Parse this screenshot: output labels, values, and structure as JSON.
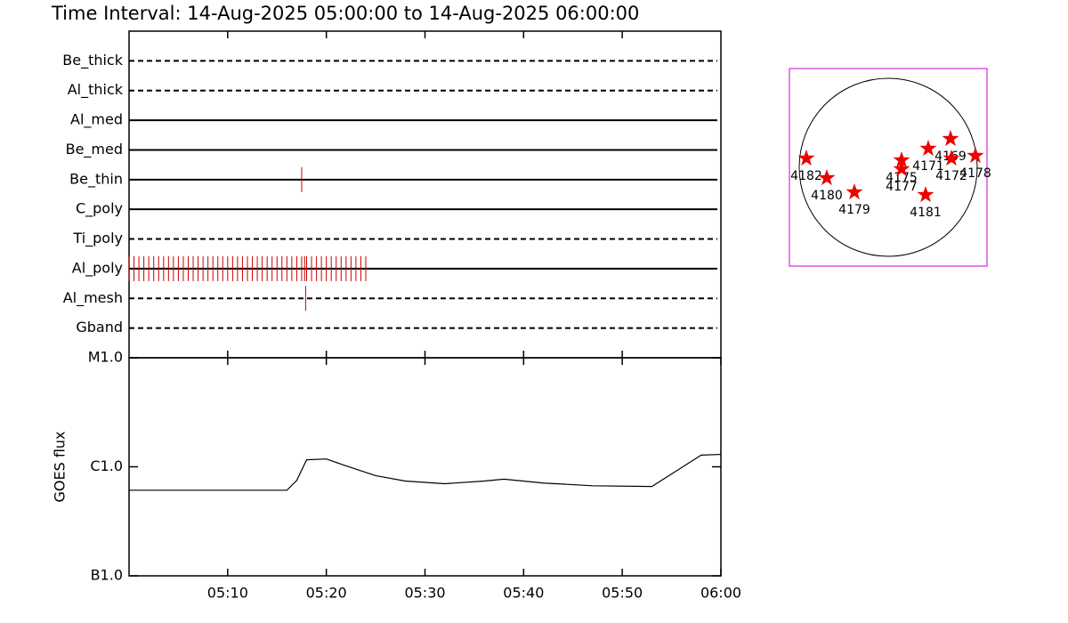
{
  "chart_data": [
    {
      "type": "timeline",
      "title": "Time Interval: 14-Aug-2025 05:00:00 to 14-Aug-2025 06:00:00",
      "categories": [
        "Be_thick",
        "Al_thick",
        "Al_med",
        "Be_med",
        "Be_thin",
        "C_poly",
        "Ti_poly",
        "Al_poly",
        "Al_mesh",
        "Gband"
      ],
      "styles": [
        "dashed",
        "dashed",
        "solid",
        "solid",
        "solid",
        "solid",
        "dashed",
        "solid",
        "dashed",
        "dashed"
      ],
      "events": [
        [],
        [],
        [],
        [],
        [
          17.5
        ],
        [],
        [],
        [
          0,
          0.5,
          1,
          1.5,
          2,
          2.5,
          3,
          3.5,
          4,
          4.5,
          5,
          5.5,
          6,
          6.5,
          7,
          7.5,
          8,
          8.5,
          9,
          9.5,
          10,
          10.5,
          11,
          11.5,
          12,
          12.5,
          13,
          13.5,
          14,
          14.5,
          15,
          15.5,
          16,
          16.5,
          17,
          17.5,
          17.8,
          18,
          18.5,
          19,
          19.5,
          20,
          20.5,
          21,
          21.5,
          22,
          22.5,
          23,
          23.5,
          24
        ],
        [
          17.9
        ],
        []
      ],
      "color": "#cc0000",
      "xlim": [
        0,
        60
      ],
      "xticks": [
        10,
        20,
        30,
        40,
        50
      ]
    },
    {
      "type": "line",
      "ylabel": "GOES flux",
      "x": [
        0,
        16,
        17,
        18,
        20,
        22,
        25,
        28,
        32,
        36,
        38,
        42,
        47,
        53,
        55,
        58,
        60
      ],
      "values": [
        6.1e-07,
        6.1e-07,
        7.5e-07,
        1.16e-06,
        1.18e-06,
        1.02e-06,
        8.3e-07,
        7.4e-07,
        7e-07,
        7.4e-07,
        7.7e-07,
        7.1e-07,
        6.7e-07,
        6.6e-07,
        8.6e-07,
        1.28e-06,
        1.3e-06
      ],
      "color": "#000000",
      "log": true,
      "xlim": [
        0,
        60
      ],
      "xticks": [
        {
          "value": 10,
          "label": "05:10"
        },
        {
          "value": 20,
          "label": "05:20"
        },
        {
          "value": 30,
          "label": "05:30"
        },
        {
          "value": 40,
          "label": "05:40"
        },
        {
          "value": 50,
          "label": "05:50"
        },
        {
          "value": 60,
          "label": "06:00"
        }
      ],
      "ylim": [
        1e-07,
        1e-05
      ],
      "yticks": [
        {
          "value": 1e-07,
          "label": "B1.0"
        },
        {
          "value": 1e-06,
          "label": "C1.0"
        },
        {
          "value": 1e-05,
          "label": "M1.0"
        }
      ]
    },
    {
      "type": "scatter",
      "labels": [
        "4182",
        "4180",
        "4179",
        "4175",
        "4177",
        "4171",
        "4169",
        "4172",
        "4178",
        "4181"
      ],
      "x": [
        -0.92,
        -0.69,
        -0.38,
        0.15,
        0.15,
        0.45,
        0.7,
        0.71,
        0.98,
        0.42
      ],
      "y": [
        0.1,
        -0.12,
        -0.28,
        0.08,
        -0.02,
        0.21,
        0.32,
        0.1,
        0.13,
        -0.31
      ],
      "color": "#ee0000",
      "frame_color": "#cc00cc",
      "xlim": [
        -1.11,
        1.11
      ],
      "ylim": [
        -1.11,
        1.11
      ]
    }
  ]
}
